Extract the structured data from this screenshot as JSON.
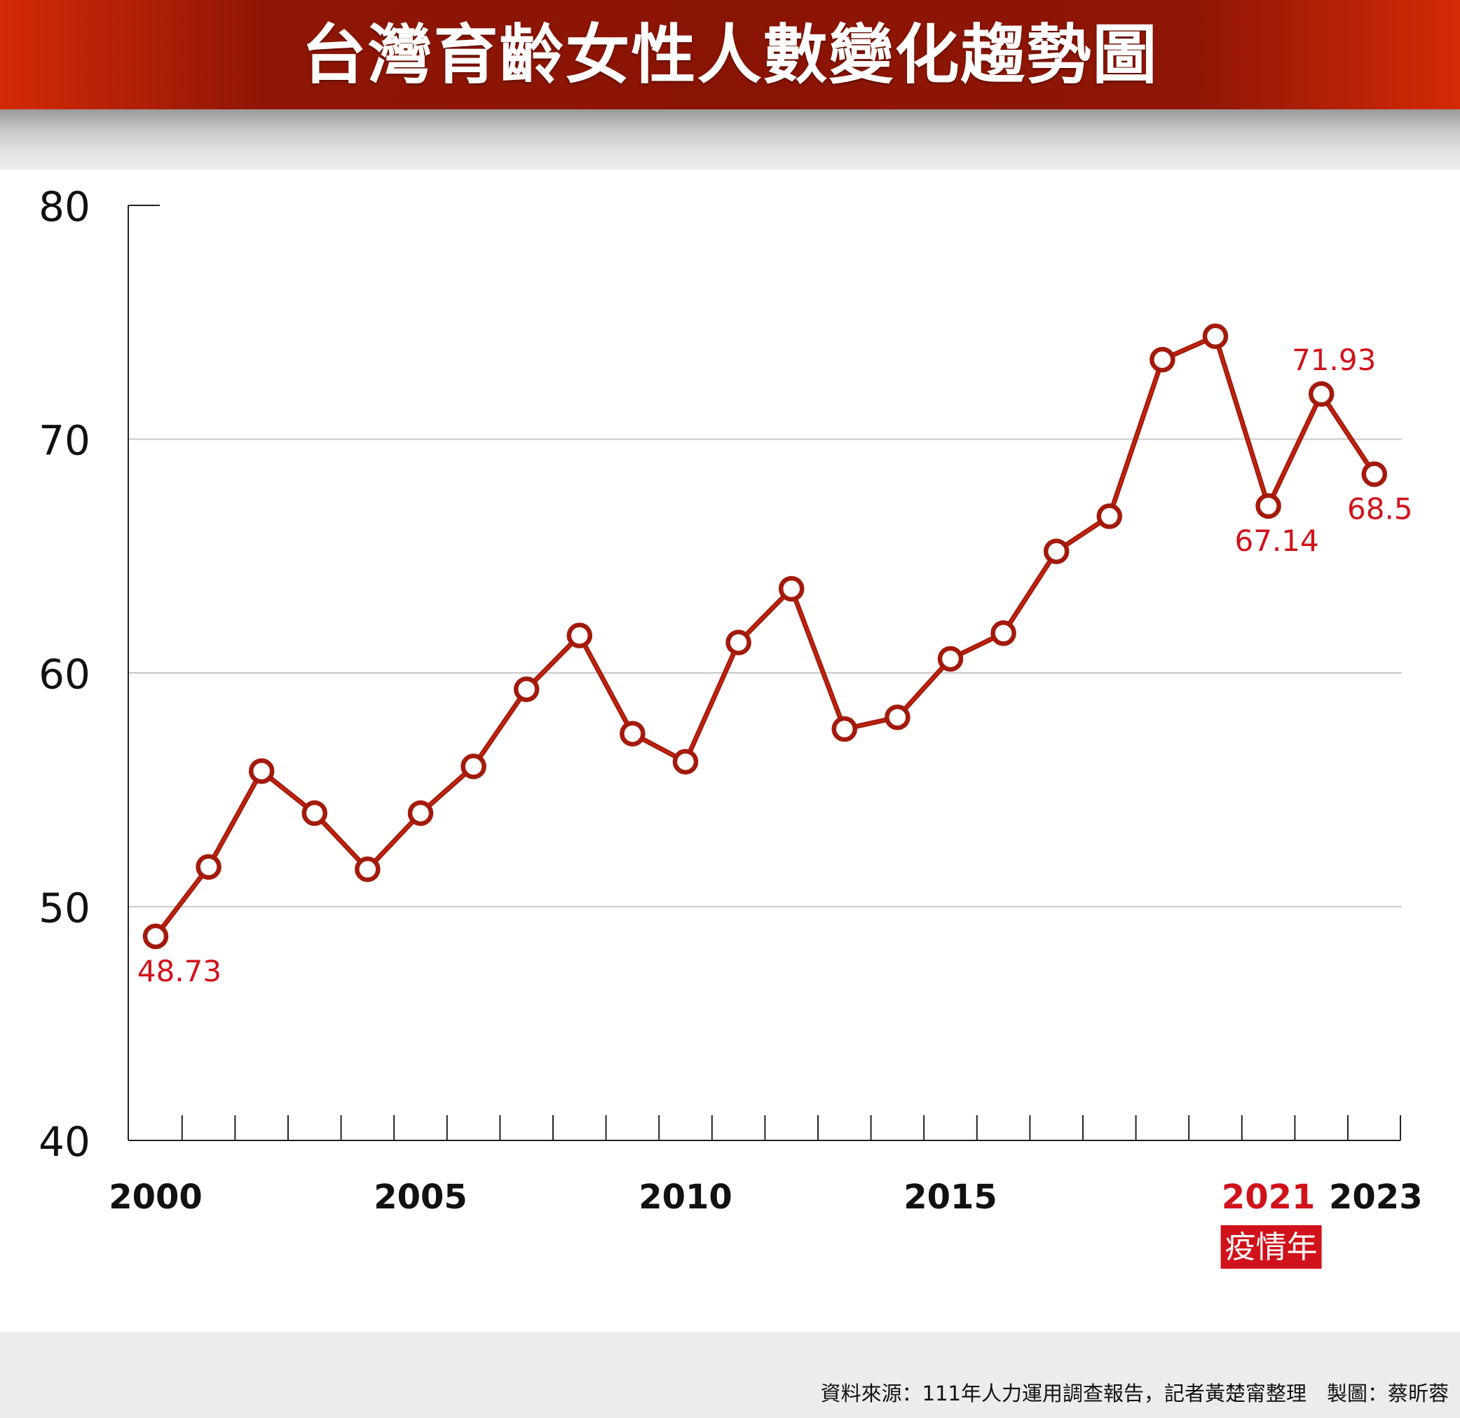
{
  "title": "台灣育齡女性人數變化趨勢圖",
  "source_note": "資料來源：111年人力運用調查報告，記者黃楚甯整理　製圖：蔡昕蓉",
  "colors": {
    "line": "#a31a0c",
    "line_highlight": "#e0300f",
    "accent_label": "#d0121b",
    "grid": "#c8c8c8",
    "axis": "#222222",
    "title_bar": "#8a1404"
  },
  "chart_data": {
    "type": "line",
    "title": "台灣育齡女性人數變化趨勢圖",
    "xlabel": "",
    "ylabel": "",
    "x": [
      2000,
      2001,
      2002,
      2003,
      2004,
      2005,
      2006,
      2007,
      2008,
      2009,
      2010,
      2011,
      2012,
      2013,
      2014,
      2015,
      2016,
      2017,
      2018,
      2019,
      2020,
      2021,
      2022,
      2023
    ],
    "series": [
      {
        "values": [
          48.73,
          51.7,
          55.8,
          54.0,
          51.6,
          54.0,
          56.0,
          59.3,
          61.6,
          57.4,
          56.2,
          61.3,
          63.6,
          57.6,
          58.1,
          60.6,
          61.7,
          65.2,
          66.7,
          73.4,
          74.4,
          67.14,
          71.93,
          68.5
        ]
      }
    ],
    "ylim": [
      40,
      80
    ],
    "yticks": [
      40,
      50,
      60,
      70,
      80
    ],
    "gridlines_y": [
      50,
      60,
      70
    ],
    "xtick_labels": [
      "2000",
      "2005",
      "2010",
      "2015",
      "2021",
      "2023"
    ],
    "highlight_tick": "2021",
    "highlight_tag": "疫情年",
    "data_labels": [
      {
        "x": 2000,
        "text": "48.73",
        "position": "below"
      },
      {
        "x": 2021,
        "text": "67.14",
        "position": "below"
      },
      {
        "x": 2022,
        "text": "71.93",
        "position": "above"
      },
      {
        "x": 2023,
        "text": "68.5",
        "position": "below"
      }
    ],
    "grid": true,
    "legend": "none"
  }
}
